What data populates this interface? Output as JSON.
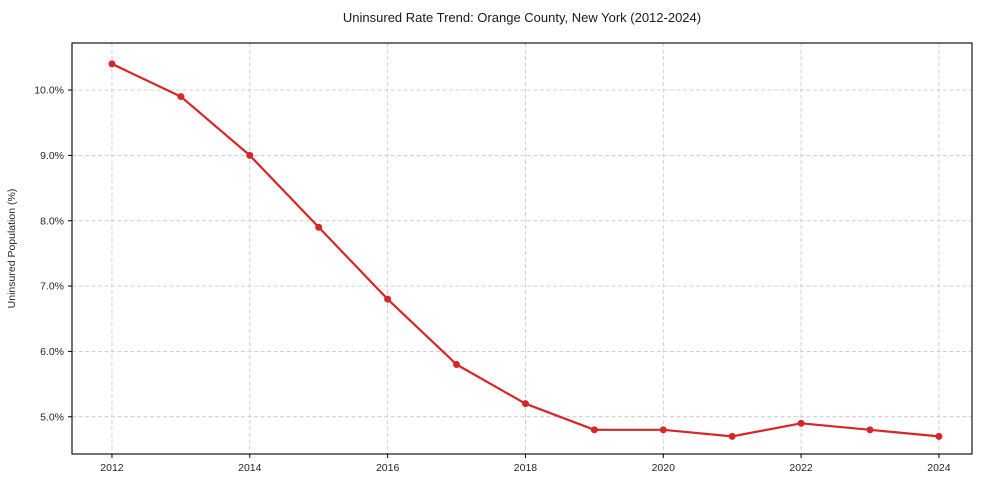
{
  "figure": {
    "background": "#ffffff"
  },
  "chart_data": {
    "type": "line",
    "title": "Uninsured Rate Trend: Orange County, New York (2012-2024)",
    "xlabel": "",
    "ylabel": "Uninsured Population (%)",
    "x": [
      2012,
      2013,
      2014,
      2015,
      2016,
      2017,
      2018,
      2019,
      2020,
      2021,
      2022,
      2023,
      2024
    ],
    "series": [
      {
        "color": "#d62728",
        "marker": "circle",
        "values": [
          10.4,
          9.9,
          9.0,
          7.9,
          6.8,
          5.8,
          5.2,
          4.8,
          4.8,
          4.7,
          4.9,
          4.8,
          4.7
        ]
      }
    ],
    "xlim": [
      2011.42,
      2024.48
    ],
    "ylim": [
      4.43,
      10.72
    ],
    "x_ticks": [
      2012,
      2014,
      2016,
      2018,
      2020,
      2022,
      2024
    ],
    "x_tick_labels": [
      "2012",
      "2014",
      "2016",
      "2018",
      "2020",
      "2022",
      "2024"
    ],
    "y_ticks": [
      5,
      6,
      7,
      8,
      9,
      10
    ],
    "y_tick_labels": [
      "5.0%",
      "6.0%",
      "7.0%",
      "8.0%",
      "9.0%",
      "10.0%"
    ],
    "grid": true,
    "grid_style": "dashed",
    "legend": "none",
    "colors": {
      "grid": "#cccccc",
      "axis": "#000000",
      "text": "#262626"
    }
  }
}
